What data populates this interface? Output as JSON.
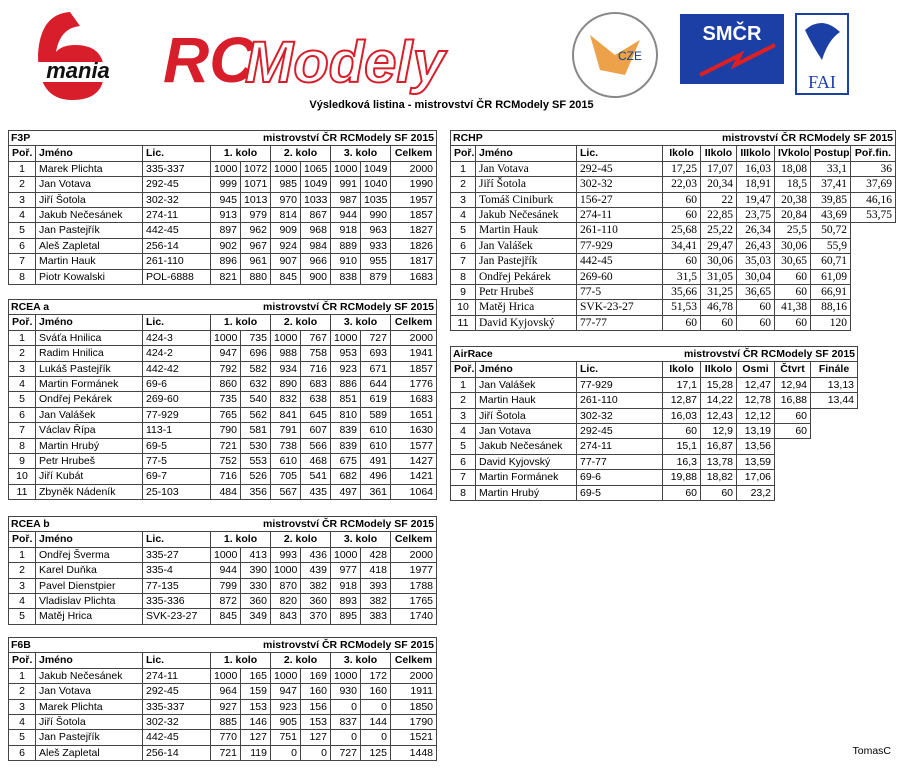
{
  "logos": {
    "mania": "mania",
    "rc": "RC",
    "modely": "Modely",
    "cze": "CZE",
    "smcr": "SMČR",
    "fai": "FAI"
  },
  "title": "Výsledková listina - mistrovství ČR RCModely SF 2015",
  "tables": [
    {
      "name": "F3P",
      "subtitle": "mistrovství ČR RCModely SF 2015",
      "columns": [
        "Poř.",
        "Jméno",
        "Lic.",
        "1. kolo",
        "2. kolo",
        "3. kolo",
        "Celkem"
      ],
      "rows": [
        [
          "1",
          "Marek Plichta",
          "335-337",
          "1000",
          "1072",
          "1000",
          "1065",
          "1000",
          "1049",
          "2000"
        ],
        [
          "2",
          "Jan Votava",
          "292-45",
          "999",
          "1071",
          "985",
          "1049",
          "991",
          "1040",
          "1990"
        ],
        [
          "3",
          "Jiří Šotola",
          "302-32",
          "945",
          "1013",
          "970",
          "1033",
          "987",
          "1035",
          "1957"
        ],
        [
          "4",
          "Jakub Nečesánek",
          "274-11",
          "913",
          "979",
          "814",
          "867",
          "944",
          "990",
          "1857"
        ],
        [
          "5",
          "Jan Pastejřík",
          "442-45",
          "897",
          "962",
          "909",
          "968",
          "918",
          "963",
          "1827"
        ],
        [
          "6",
          "Aleš Zapletal",
          "256-14",
          "902",
          "967",
          "924",
          "984",
          "889",
          "933",
          "1826"
        ],
        [
          "7",
          "Martin Hauk",
          "261-110",
          "896",
          "961",
          "907",
          "966",
          "910",
          "955",
          "1817"
        ],
        [
          "8",
          "Piotr Kowalski",
          "POL-6888",
          "821",
          "880",
          "845",
          "900",
          "838",
          "879",
          "1683"
        ]
      ]
    },
    {
      "name": "RCEA a",
      "subtitle": "mistrovství ČR RCModely SF 2015",
      "columns": [
        "Poř.",
        "Jméno",
        "Lic.",
        "1. kolo",
        "2. kolo",
        "3. kolo",
        "Celkem"
      ],
      "rows": [
        [
          "1",
          "Sváťa Hnilica",
          "424-3",
          "1000",
          "735",
          "1000",
          "767",
          "1000",
          "727",
          "2000"
        ],
        [
          "2",
          "Radim Hnilica",
          "424-2",
          "947",
          "696",
          "988",
          "758",
          "953",
          "693",
          "1941"
        ],
        [
          "3",
          "Lukáš Pastejřík",
          "442-42",
          "792",
          "582",
          "934",
          "716",
          "923",
          "671",
          "1857"
        ],
        [
          "4",
          "Martin Formánek",
          "69-6",
          "860",
          "632",
          "890",
          "683",
          "886",
          "644",
          "1776"
        ],
        [
          "5",
          "Ondřej Pekárek",
          "269-60",
          "735",
          "540",
          "832",
          "638",
          "851",
          "619",
          "1683"
        ],
        [
          "6",
          "Jan Valášek",
          "77-929",
          "765",
          "562",
          "841",
          "645",
          "810",
          "589",
          "1651"
        ],
        [
          "7",
          "Václav Řípa",
          "113-1",
          "790",
          "581",
          "791",
          "607",
          "839",
          "610",
          "1630"
        ],
        [
          "8",
          "Martin Hrubý",
          "69-5",
          "721",
          "530",
          "738",
          "566",
          "839",
          "610",
          "1577"
        ],
        [
          "9",
          "Petr Hrubeš",
          "77-5",
          "752",
          "553",
          "610",
          "468",
          "675",
          "491",
          "1427"
        ],
        [
          "10",
          "Jiří Kubát",
          "69-7",
          "716",
          "526",
          "705",
          "541",
          "682",
          "496",
          "1421"
        ],
        [
          "11",
          "Zbyněk Nádeník",
          "25-103",
          "484",
          "356",
          "567",
          "435",
          "497",
          "361",
          "1064"
        ]
      ]
    },
    {
      "name": "RCEA b",
      "subtitle": "mistrovství ČR RCModely SF 2015",
      "columns": [
        "Poř.",
        "Jméno",
        "Lic.",
        "1. kolo",
        "2. kolo",
        "3. kolo",
        "Celkem"
      ],
      "rows": [
        [
          "1",
          "Ondřej Šverma",
          "335-27",
          "1000",
          "413",
          "993",
          "436",
          "1000",
          "428",
          "2000"
        ],
        [
          "2",
          "Karel Duňka",
          "335-4",
          "944",
          "390",
          "1000",
          "439",
          "977",
          "418",
          "1977"
        ],
        [
          "3",
          "Pavel Dienstpier",
          "77-135",
          "799",
          "330",
          "870",
          "382",
          "918",
          "393",
          "1788"
        ],
        [
          "4",
          "Vladislav Plichta",
          "335-336",
          "872",
          "360",
          "820",
          "360",
          "893",
          "382",
          "1765"
        ],
        [
          "5",
          "Matěj Hrica",
          "SVK-23-27",
          "845",
          "349",
          "843",
          "370",
          "895",
          "383",
          "1740"
        ]
      ]
    },
    {
      "name": "F6B",
      "subtitle": "mistrovství ČR RCModely SF 2015",
      "columns": [
        "Poř.",
        "Jméno",
        "Lic.",
        "1. kolo",
        "2. kolo",
        "3. kolo",
        "Celkem"
      ],
      "rows": [
        [
          "1",
          "Jakub Nečesánek",
          "274-11",
          "1000",
          "165",
          "1000",
          "169",
          "1000",
          "172",
          "2000"
        ],
        [
          "2",
          "Jan Votava",
          "292-45",
          "964",
          "159",
          "947",
          "160",
          "930",
          "160",
          "1911"
        ],
        [
          "3",
          "Marek Plichta",
          "335-337",
          "927",
          "153",
          "923",
          "156",
          "0",
          "0",
          "1850"
        ],
        [
          "4",
          "Jiří Šotola",
          "302-32",
          "885",
          "146",
          "905",
          "153",
          "837",
          "144",
          "1790"
        ],
        [
          "5",
          "Jan Pastejřík",
          "442-45",
          "770",
          "127",
          "751",
          "127",
          "0",
          "0",
          "1521"
        ],
        [
          "6",
          "Aleš Zapletal",
          "256-14",
          "721",
          "119",
          "0",
          "0",
          "727",
          "125",
          "1448"
        ]
      ]
    },
    {
      "name": "RCHP",
      "subtitle": "mistrovství ČR RCModely SF 2015",
      "columns": [
        "Poř.",
        "Jméno",
        "Lic.",
        "Ikolo",
        "IIkolo",
        "IIIkolo",
        "IVkolo",
        "Postup",
        "Poř.fin."
      ],
      "rows": [
        [
          "1",
          "Jan Votava",
          "292-45",
          "17,25",
          "17,07",
          "16,03",
          "18,08",
          "33,1",
          "36"
        ],
        [
          "2",
          "Jiří Šotola",
          "302-32",
          "22,03",
          "20,34",
          "18,91",
          "18,5",
          "37,41",
          "37,69"
        ],
        [
          "3",
          "Tomáš Ciniburk",
          "156-27",
          "60",
          "22",
          "19,47",
          "20,38",
          "39,85",
          "46,16"
        ],
        [
          "4",
          "Jakub Nečesánek",
          "274-11",
          "60",
          "22,85",
          "23,75",
          "20,84",
          "43,69",
          "53,75"
        ],
        [
          "5",
          "Martin Hauk",
          "261-110",
          "25,68",
          "25,22",
          "26,34",
          "25,5",
          "50,72"
        ],
        [
          "6",
          "Jan Valášek",
          "77-929",
          "34,41",
          "29,47",
          "26,43",
          "30,06",
          "55,9"
        ],
        [
          "7",
          "Jan Pastejřík",
          "442-45",
          "60",
          "30,06",
          "35,03",
          "30,65",
          "60,71"
        ],
        [
          "8",
          "Ondřej Pekárek",
          "269-60",
          "31,5",
          "31,05",
          "30,04",
          "60",
          "61,09"
        ],
        [
          "9",
          "Petr Hrubeš",
          "77-5",
          "35,66",
          "31,25",
          "36,65",
          "60",
          "66,91"
        ],
        [
          "10",
          "Matěj Hrica",
          "SVK-23-27",
          "51,53",
          "46,78",
          "60",
          "41,38",
          "88,16"
        ],
        [
          "11",
          "David Kyjovský",
          "77-77",
          "60",
          "60",
          "60",
          "60",
          "120"
        ]
      ]
    },
    {
      "name": "AirRace",
      "subtitle": "mistrovství ČR RCModely SF 2015",
      "columns": [
        "Poř.",
        "Jméno",
        "Lic.",
        "Ikolo",
        "IIkolo",
        "Osmi",
        "Čtvrt",
        "Finále"
      ],
      "rows": [
        [
          "1",
          "Jan Valášek",
          "77-929",
          "17,1",
          "15,28",
          "12,47",
          "12,94",
          "13,13"
        ],
        [
          "2",
          "Martin Hauk",
          "261-110",
          "12,87",
          "14,22",
          "12,78",
          "16,88",
          "13,44"
        ],
        [
          "3",
          "Jiří Šotola",
          "302-32",
          "16,03",
          "12,43",
          "12,12",
          "60"
        ],
        [
          "4",
          "Jan Votava",
          "292-45",
          "60",
          "12,9",
          "13,19",
          "60"
        ],
        [
          "5",
          "Jakub Nečesánek",
          "274-11",
          "15,1",
          "16,87",
          "13,56"
        ],
        [
          "6",
          "David Kyjovský",
          "77-77",
          "16,3",
          "13,78",
          "13,59"
        ],
        [
          "7",
          "Martin Formánek",
          "69-6",
          "19,88",
          "18,82",
          "17,06"
        ],
        [
          "8",
          "Martin Hrubý",
          "69-5",
          "60",
          "60",
          "23,2"
        ]
      ]
    }
  ],
  "footer": "TomasC"
}
